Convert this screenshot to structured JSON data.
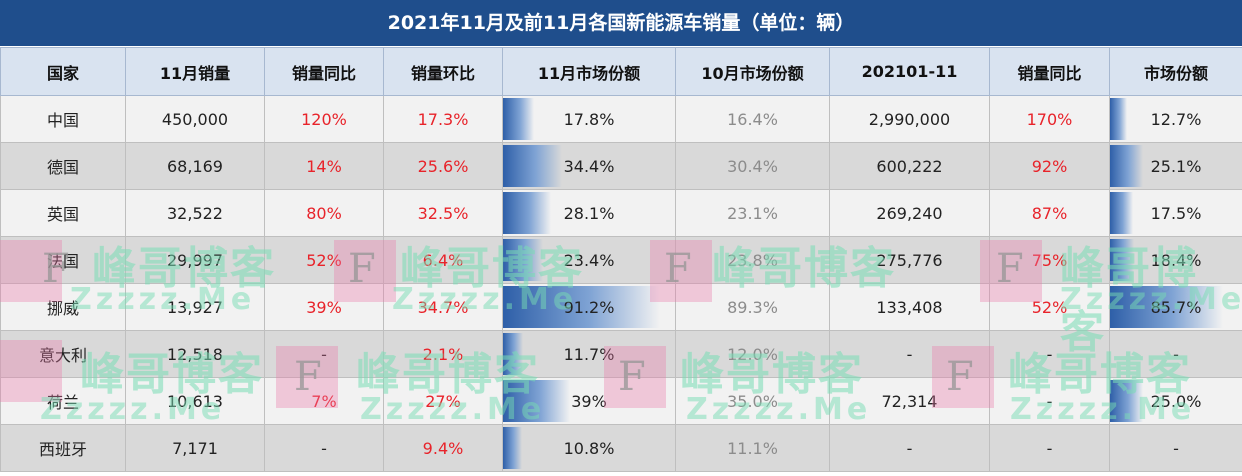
{
  "title": "2021年11月及前11月各国新能源车销量（单位：辆）",
  "headers": [
    "国家",
    "11月销量",
    "销量同比",
    "销量环比",
    "11月市场份额",
    "10月市场份额",
    "202101-11",
    "销量同比",
    "市场份额"
  ],
  "rows": [
    {
      "country": "中国",
      "nov_sales": "450,000",
      "yoy": "120%",
      "mom": "17.3%",
      "nov_share": "17.8%",
      "nov_share_value": 17.8,
      "oct_share": "16.4%",
      "ytd": "2,990,000",
      "ytd_yoy": "170%",
      "share": "12.7%",
      "share_value": 12.7
    },
    {
      "country": "德国",
      "nov_sales": "68,169",
      "yoy": "14%",
      "mom": "25.6%",
      "nov_share": "34.4%",
      "nov_share_value": 34.4,
      "oct_share": "30.4%",
      "ytd": "600,222",
      "ytd_yoy": "92%",
      "share": "25.1%",
      "share_value": 25.1
    },
    {
      "country": "英国",
      "nov_sales": "32,522",
      "yoy": "80%",
      "mom": "32.5%",
      "nov_share": "28.1%",
      "nov_share_value": 28.1,
      "oct_share": "23.1%",
      "ytd": "269,240",
      "ytd_yoy": "87%",
      "share": "17.5%",
      "share_value": 17.5
    },
    {
      "country": "法国",
      "nov_sales": "29,997",
      "yoy": "52%",
      "mom": "6.4%",
      "nov_share": "23.4%",
      "nov_share_value": 23.4,
      "oct_share": "23.8%",
      "ytd": "275,776",
      "ytd_yoy": "75%",
      "share": "18.4%",
      "share_value": 18.4
    },
    {
      "country": "挪威",
      "nov_sales": "13,927",
      "yoy": "39%",
      "mom": "34.7%",
      "nov_share": "91.2%",
      "nov_share_value": 91.2,
      "oct_share": "89.3%",
      "ytd": "133,408",
      "ytd_yoy": "52%",
      "share": "85.7%",
      "share_value": 85.7
    },
    {
      "country": "意大利",
      "nov_sales": "12,518",
      "yoy": "-",
      "mom": "2.1%",
      "nov_share": "11.7%",
      "nov_share_value": 11.7,
      "oct_share": "12.0%",
      "ytd": "-",
      "ytd_yoy": "-",
      "share": "-",
      "share_value": 0
    },
    {
      "country": "荷兰",
      "nov_sales": "10,613",
      "yoy": "7%",
      "mom": "27%",
      "nov_share": "39%",
      "nov_share_value": 39,
      "oct_share": "35.0%",
      "ytd": "72,314",
      "ytd_yoy": "-",
      "share": "25.0%",
      "share_value": 25.0
    },
    {
      "country": "西班牙",
      "nov_sales": "7,171",
      "yoy": "-",
      "mom": "9.4%",
      "nov_share": "10.8%",
      "nov_share_value": 10.8,
      "oct_share": "11.1%",
      "ytd": "-",
      "ytd_yoy": "-",
      "share": "-",
      "share_value": 0
    }
  ],
  "watermark": {
    "letter": "F",
    "cn_text": "峰哥博客",
    "en_text": "Zzzzz.Me"
  },
  "colors": {
    "title_bg": "#1f4e8c",
    "header_bg": "#d9e3f0",
    "positive_red": "#e8232a",
    "bar_blue": "#2e5fa8"
  }
}
